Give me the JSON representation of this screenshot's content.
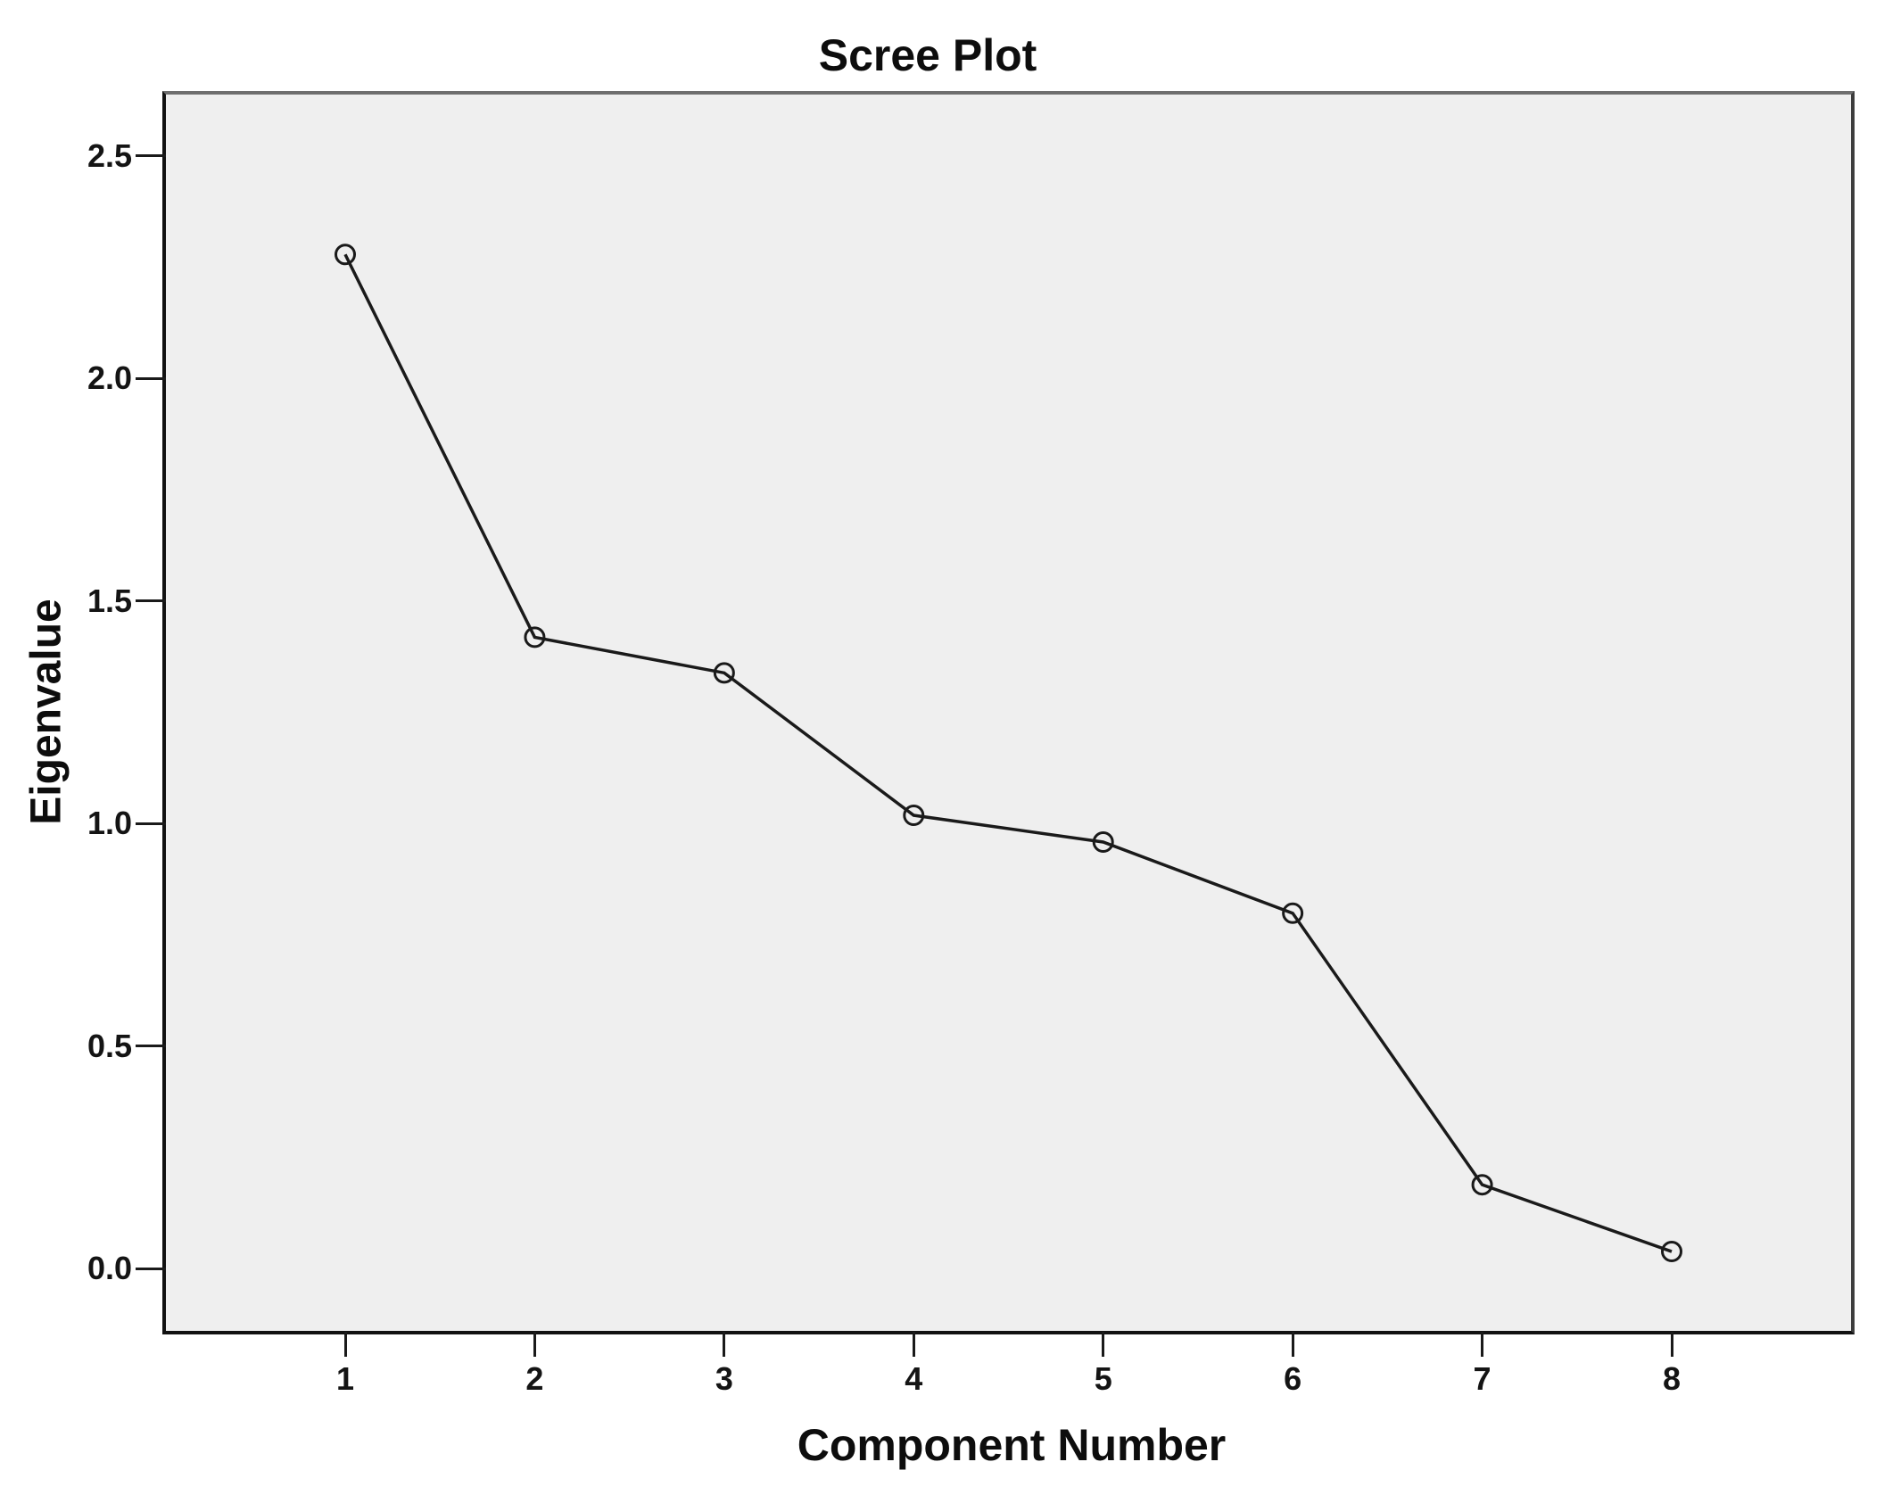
{
  "chart_data": {
    "type": "line",
    "title": "Scree Plot",
    "xlabel": "Component Number",
    "ylabel": "Eigenvalue",
    "x": [
      1,
      2,
      3,
      4,
      5,
      6,
      7,
      8
    ],
    "series": [
      {
        "name": "Eigenvalue",
        "values": [
          2.28,
          1.42,
          1.34,
          1.02,
          0.96,
          0.8,
          0.19,
          0.04
        ]
      }
    ],
    "x_tick_labels": [
      "1",
      "2",
      "3",
      "4",
      "5",
      "6",
      "7",
      "8"
    ],
    "y_ticks": [
      2.5,
      2.0,
      1.5,
      1.0,
      0.5,
      0.0
    ],
    "y_tick_labels": [
      "2.5",
      "2.0",
      "1.5",
      "1.0",
      "0.5",
      "0.0"
    ],
    "ylim": [
      -0.14,
      2.64
    ],
    "grid": false,
    "legend": null,
    "marker": "open-circle",
    "line_color": "#1a1a1a",
    "marker_color": "#1a1a1a",
    "plot_background": "#efefef",
    "frame_color": "#111111",
    "text_color": "#0d0d0d"
  }
}
